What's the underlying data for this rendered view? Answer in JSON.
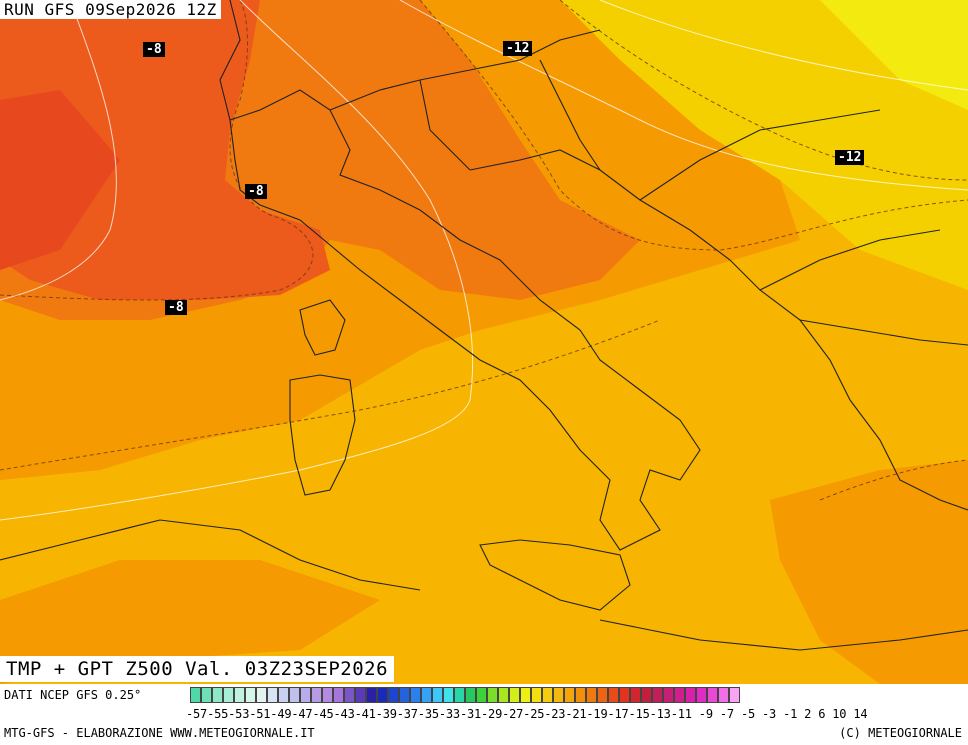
{
  "header": {
    "run_label": "RUN GFS 09Sep2026 12Z",
    "valid_label": "TMP + GPT Z500 Val. 03Z23SEP2026"
  },
  "isotherm_labels": [
    "-8",
    "-12",
    "-8",
    "-12",
    "-8"
  ],
  "footer": {
    "source": "DATI NCEP GFS 0.25°",
    "scale_labels": "-57-55-53-51-49-47-45-43-41-39-37-35-33-31-29-27-25-23-21-19-17-15-13-11 -9 -7 -5 -3 -1  2  6  10  14",
    "left_credit": "MTG-GFS - ELABORAZIONE WWW.METEOGIORNALE.IT",
    "right_credit": "(C) METEOGIORNALE"
  },
  "palette": {
    "ocean_warm": "#f7b400",
    "mid_orange": "#f59a00",
    "deep_orange": "#f07a10",
    "red_orange": "#ec5a1c",
    "yellow": "#f4d000",
    "bright_yellow": "#f3ea10"
  },
  "legend_colors": [
    "#4fd9a8",
    "#6ee0b8",
    "#8de8c8",
    "#a8eed6",
    "#bff2e0",
    "#d6f6ea",
    "#e6f4f0",
    "#d8e4f4",
    "#c8d2f0",
    "#c0c0ec",
    "#b8acea",
    "#b79be6",
    "#b58ae2",
    "#a676dc",
    "#7a56c8",
    "#5a3ab8",
    "#2a20a8",
    "#1a2ab8",
    "#1e46cc",
    "#2462de",
    "#2a80ee",
    "#34a2f6",
    "#3cc8f8",
    "#3ee2e8",
    "#2ad6a8",
    "#28c860",
    "#3ed23a",
    "#7ade2a",
    "#a8e620",
    "#d4ee1a",
    "#eef014",
    "#f4e010",
    "#f4cc10",
    "#f4b80e",
    "#f4a40c",
    "#f2900c",
    "#f07a10",
    "#ec6414",
    "#e84c1a",
    "#e03420",
    "#d02630",
    "#c0203c",
    "#c0205a",
    "#c81e74",
    "#d01e8e",
    "#d820aa",
    "#e02cc4",
    "#e84ad6",
    "#f06ee6",
    "#f8a4f4"
  ]
}
